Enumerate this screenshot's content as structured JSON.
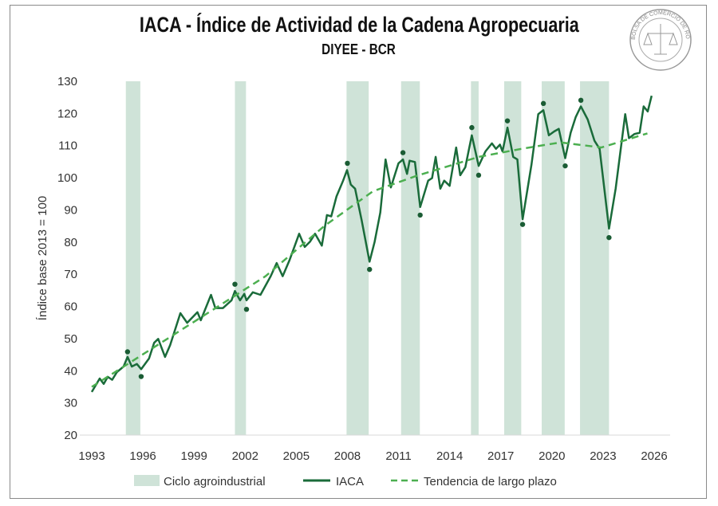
{
  "title": "IACA - Índice de Actividad de la Cadena Agropecuaria",
  "subtitle": "DIYEE - BCR",
  "logo_text": "BOLSA DE COMERCIO DE ROSARIO",
  "chart_data": {
    "type": "line",
    "title": "IACA - Índice de Actividad de la Cadena Agropecuaria",
    "subtitle": "DIYEE - BCR",
    "ylabel": "Índice base 2013 = 100",
    "xlabel": "",
    "xlim": [
      1993,
      2026
    ],
    "ylim": [
      20,
      130
    ],
    "x_ticks": [
      "1993",
      "1996",
      "1999",
      "2002",
      "2005",
      "2008",
      "2011",
      "2014",
      "2017",
      "2020",
      "2023",
      "2026"
    ],
    "y_ticks": [
      "20",
      "30",
      "40",
      "50",
      "60",
      "70",
      "80",
      "90",
      "100",
      "110",
      "120",
      "130"
    ],
    "grid": false,
    "legend_position": "bottom",
    "legend": [
      "Ciclo agroindustrial",
      "IACA",
      "Tendencia de largo plazo"
    ],
    "colors": {
      "band": "#cfe3d8",
      "iaca": "#1a6b3a",
      "trend": "#4caf50",
      "marker": "#1a5c34"
    },
    "bands": [
      [
        1995.0,
        1995.85
      ],
      [
        2001.4,
        2002.05
      ],
      [
        2007.95,
        2009.25
      ],
      [
        2011.15,
        2012.25
      ],
      [
        2015.25,
        2015.7
      ],
      [
        2017.2,
        2018.2
      ],
      [
        2019.4,
        2020.75
      ],
      [
        2021.65,
        2023.35
      ]
    ],
    "series": [
      {
        "name": "IACA",
        "style": "solid",
        "points": [
          [
            1993.0,
            33.4
          ],
          [
            1993.47,
            37.6
          ],
          [
            1993.7,
            35.9
          ],
          [
            1993.94,
            38.1
          ],
          [
            1994.2,
            37.2
          ],
          [
            1994.48,
            39.6
          ],
          [
            1994.87,
            41.3
          ],
          [
            1995.1,
            44.3
          ],
          [
            1995.35,
            41.3
          ],
          [
            1995.65,
            42.1
          ],
          [
            1995.9,
            40.5
          ],
          [
            1996.36,
            43.8
          ],
          [
            1996.66,
            48.7
          ],
          [
            1996.9,
            49.9
          ],
          [
            1997.3,
            44.3
          ],
          [
            1997.6,
            48.0
          ],
          [
            1998.2,
            57.9
          ],
          [
            1998.6,
            54.9
          ],
          [
            1999.2,
            58.2
          ],
          [
            1999.4,
            55.7
          ],
          [
            2000.0,
            63.6
          ],
          [
            2000.25,
            59.5
          ],
          [
            2000.7,
            59.5
          ],
          [
            2001.2,
            61.9
          ],
          [
            2001.4,
            64.8
          ],
          [
            2001.7,
            61.9
          ],
          [
            2001.95,
            63.9
          ],
          [
            2002.08,
            61.9
          ],
          [
            2002.45,
            64.4
          ],
          [
            2002.9,
            63.6
          ],
          [
            2003.5,
            69.4
          ],
          [
            2003.85,
            73.5
          ],
          [
            2004.2,
            69.4
          ],
          [
            2004.6,
            74.3
          ],
          [
            2005.17,
            82.6
          ],
          [
            2005.5,
            78.5
          ],
          [
            2005.8,
            80.1
          ],
          [
            2006.1,
            82.6
          ],
          [
            2006.5,
            78.9
          ],
          [
            2006.8,
            88.4
          ],
          [
            2007.05,
            88.0
          ],
          [
            2007.36,
            94.2
          ],
          [
            2007.75,
            99.1
          ],
          [
            2007.98,
            102.4
          ],
          [
            2008.2,
            97.9
          ],
          [
            2008.45,
            96.6
          ],
          [
            2008.84,
            86.7
          ],
          [
            2009.3,
            73.9
          ],
          [
            2009.6,
            80.1
          ],
          [
            2009.93,
            89.2
          ],
          [
            2010.24,
            105.7
          ],
          [
            2010.55,
            97.0
          ],
          [
            2011.0,
            104.5
          ],
          [
            2011.26,
            105.7
          ],
          [
            2011.5,
            101.2
          ],
          [
            2011.65,
            105.3
          ],
          [
            2011.96,
            104.9
          ],
          [
            2012.27,
            90.9
          ],
          [
            2012.74,
            99.1
          ],
          [
            2012.97,
            99.9
          ],
          [
            2013.18,
            106.5
          ],
          [
            2013.45,
            96.6
          ],
          [
            2013.68,
            99.1
          ],
          [
            2014.0,
            97.5
          ],
          [
            2014.38,
            109.4
          ],
          [
            2014.62,
            100.8
          ],
          [
            2014.92,
            103.3
          ],
          [
            2015.3,
            113.2
          ],
          [
            2015.7,
            103.7
          ],
          [
            2016.1,
            108.2
          ],
          [
            2016.48,
            110.7
          ],
          [
            2016.72,
            109.0
          ],
          [
            2016.95,
            110.3
          ],
          [
            2017.1,
            108.2
          ],
          [
            2017.39,
            115.6
          ],
          [
            2017.73,
            106.5
          ],
          [
            2017.97,
            105.7
          ],
          [
            2018.28,
            87.1
          ],
          [
            2018.8,
            104.1
          ],
          [
            2019.2,
            119.8
          ],
          [
            2019.5,
            121.0
          ],
          [
            2019.82,
            113.2
          ],
          [
            2020.13,
            114.4
          ],
          [
            2020.4,
            115.2
          ],
          [
            2020.78,
            106.1
          ],
          [
            2021.1,
            114.0
          ],
          [
            2021.4,
            118.9
          ],
          [
            2021.7,
            122.2
          ],
          [
            2022.1,
            118.1
          ],
          [
            2022.5,
            111.5
          ],
          [
            2022.8,
            109.0
          ],
          [
            2023.35,
            84.2
          ],
          [
            2023.74,
            96.6
          ],
          [
            2024.3,
            119.8
          ],
          [
            2024.52,
            112.3
          ],
          [
            2024.84,
            113.6
          ],
          [
            2025.15,
            114.0
          ],
          [
            2025.38,
            122.2
          ],
          [
            2025.62,
            120.6
          ],
          [
            2025.85,
            125.5
          ]
        ]
      },
      {
        "name": "Tendencia de largo plazo",
        "style": "dashed",
        "points": [
          [
            1993.0,
            35.0
          ],
          [
            1997.6,
            50.5
          ],
          [
            2003.2,
            69.4
          ],
          [
            2006.65,
            85.0
          ],
          [
            2009.5,
            95.8
          ],
          [
            2012.0,
            100.5
          ],
          [
            2015.7,
            106.5
          ],
          [
            2018.2,
            109.0
          ],
          [
            2020.5,
            111.0
          ],
          [
            2022.9,
            109.4
          ],
          [
            2025.6,
            113.8
          ]
        ]
      }
    ],
    "turning_points": [
      [
        1995.1,
        45.9
      ],
      [
        1995.9,
        38.2
      ],
      [
        2001.4,
        66.9
      ],
      [
        2002.08,
        59.1
      ],
      [
        2008.0,
        104.5
      ],
      [
        2009.3,
        71.5
      ],
      [
        2011.26,
        107.8
      ],
      [
        2012.27,
        88.4
      ],
      [
        2015.3,
        115.6
      ],
      [
        2015.7,
        100.8
      ],
      [
        2017.39,
        117.7
      ],
      [
        2018.28,
        85.5
      ],
      [
        2019.5,
        123.1
      ],
      [
        2020.78,
        103.7
      ],
      [
        2021.7,
        124.1
      ],
      [
        2023.35,
        81.4
      ]
    ]
  }
}
